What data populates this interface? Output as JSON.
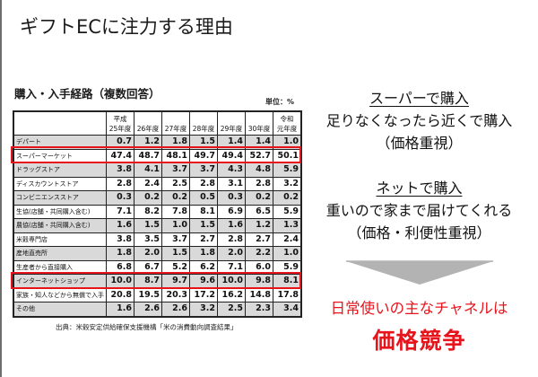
{
  "slide": {
    "title": "ギフトECに注力する理由"
  },
  "table_section": {
    "subtitle": "購入・入手経路（複数回答）",
    "unit": "単位：%",
    "source": "出典：米穀安定供給確保支援機構「米の消費動向調査結果」",
    "columns": [
      "平成\n25年度",
      "26年度",
      "27年度",
      "28年度",
      "29年度",
      "30年度",
      "令和\n元年度"
    ],
    "rows": [
      {
        "label": "デパート",
        "values": [
          "0.7",
          "1.2",
          "1.8",
          "1.5",
          "1.4",
          "1.4",
          "1.0"
        ],
        "shade": true,
        "highlight": false
      },
      {
        "label": "スーパーマーケット",
        "values": [
          "47.4",
          "48.7",
          "48.1",
          "49.7",
          "49.4",
          "52.7",
          "50.1"
        ],
        "shade": false,
        "highlight": true
      },
      {
        "label": "ドラッグストア",
        "values": [
          "3.8",
          "4.1",
          "3.7",
          "3.7",
          "4.3",
          "4.8",
          "5.9"
        ],
        "shade": true,
        "highlight": false
      },
      {
        "label": "ディスカウントストア",
        "values": [
          "2.8",
          "2.4",
          "2.5",
          "2.8",
          "3.1",
          "2.8",
          "3.2"
        ],
        "shade": false,
        "highlight": false
      },
      {
        "label": "コンビニエンスストア",
        "values": [
          "0.3",
          "0.2",
          "0.2",
          "0.5",
          "0.3",
          "0.2",
          "0.2"
        ],
        "shade": true,
        "highlight": false
      },
      {
        "label": "生協(店舗・共同購入含む)",
        "values": [
          "7.1",
          "8.2",
          "7.8",
          "8.1",
          "6.9",
          "6.5",
          "5.9"
        ],
        "shade": false,
        "highlight": false
      },
      {
        "label": "農協(店舗・共同購入含む)",
        "values": [
          "1.6",
          "1.5",
          "1.0",
          "1.5",
          "1.6",
          "1.2",
          "1.3"
        ],
        "shade": true,
        "highlight": false
      },
      {
        "label": "米穀専門店",
        "values": [
          "3.8",
          "3.5",
          "3.7",
          "2.7",
          "2.8",
          "2.7",
          "2.4"
        ],
        "shade": false,
        "highlight": false
      },
      {
        "label": "産地直売所",
        "values": [
          "1.8",
          "2.0",
          "1.5",
          "1.8",
          "2.0",
          "2.2",
          "1.0"
        ],
        "shade": true,
        "highlight": false
      },
      {
        "label": "生産者から直接購入",
        "values": [
          "6.8",
          "6.7",
          "5.2",
          "6.2",
          "7.1",
          "6.0",
          "5.9"
        ],
        "shade": false,
        "highlight": false
      },
      {
        "label": "インターネットショップ",
        "values": [
          "10.0",
          "8.7",
          "9.7",
          "9.6",
          "10.0",
          "9.8",
          "8.1"
        ],
        "shade": true,
        "highlight": true
      },
      {
        "label": "家族・知人などから無償で入手",
        "values": [
          "20.8",
          "19.5",
          "20.3",
          "17.2",
          "16.2",
          "14.8",
          "17.8"
        ],
        "shade": false,
        "highlight": false
      },
      {
        "label": "その他",
        "values": [
          "1.6",
          "2.6",
          "2.6",
          "3.2",
          "2.5",
          "2.3",
          "3.4"
        ],
        "shade": true,
        "highlight": false
      }
    ]
  },
  "right_panel": {
    "super": {
      "heading": "スーパーで購入",
      "line1": "足りなくなったら近くで購入",
      "line2": "（価格重視）"
    },
    "net": {
      "heading": "ネットで購入",
      "line1": "重いので家まで届けてくれる",
      "line2": "（価格・利便性重視）"
    },
    "conclusion": {
      "line1": "日常使いの主なチャネルは",
      "line2": "価格競争"
    }
  },
  "colors": {
    "highlight_red": "#e8141c",
    "row_shade": "#d9d9d9",
    "arrow_gray": "#b3b3b3"
  },
  "chart_data": {
    "type": "table",
    "title": "購入・入手経路（複数回答）",
    "unit": "%",
    "categories": [
      "平成25年度",
      "26年度",
      "27年度",
      "28年度",
      "29年度",
      "30年度",
      "令和元年度"
    ],
    "series": [
      {
        "name": "デパート",
        "values": [
          0.7,
          1.2,
          1.8,
          1.5,
          1.4,
          1.4,
          1.0
        ]
      },
      {
        "name": "スーパーマーケット",
        "values": [
          47.4,
          48.7,
          48.1,
          49.7,
          49.4,
          52.7,
          50.1
        ]
      },
      {
        "name": "ドラッグストア",
        "values": [
          3.8,
          4.1,
          3.7,
          3.7,
          4.3,
          4.8,
          5.9
        ]
      },
      {
        "name": "ディスカウントストア",
        "values": [
          2.8,
          2.4,
          2.5,
          2.8,
          3.1,
          2.8,
          3.2
        ]
      },
      {
        "name": "コンビニエンスストア",
        "values": [
          0.3,
          0.2,
          0.2,
          0.5,
          0.3,
          0.2,
          0.2
        ]
      },
      {
        "name": "生協(店舗・共同購入含む)",
        "values": [
          7.1,
          8.2,
          7.8,
          8.1,
          6.9,
          6.5,
          5.9
        ]
      },
      {
        "name": "農協(店舗・共同購入含む)",
        "values": [
          1.6,
          1.5,
          1.0,
          1.5,
          1.6,
          1.2,
          1.3
        ]
      },
      {
        "name": "米穀専門店",
        "values": [
          3.8,
          3.5,
          3.7,
          2.7,
          2.8,
          2.7,
          2.4
        ]
      },
      {
        "name": "産地直売所",
        "values": [
          1.8,
          2.0,
          1.5,
          1.8,
          2.0,
          2.2,
          1.0
        ]
      },
      {
        "name": "生産者から直接購入",
        "values": [
          6.8,
          6.7,
          5.2,
          6.2,
          7.1,
          6.0,
          5.9
        ]
      },
      {
        "name": "インターネットショップ",
        "values": [
          10.0,
          8.7,
          9.7,
          9.6,
          10.0,
          9.8,
          8.1
        ]
      },
      {
        "name": "家族・知人などから無償で入手",
        "values": [
          20.8,
          19.5,
          20.3,
          17.2,
          16.2,
          14.8,
          17.8
        ]
      },
      {
        "name": "その他",
        "values": [
          1.6,
          2.6,
          2.6,
          3.2,
          2.5,
          2.3,
          3.4
        ]
      }
    ]
  }
}
